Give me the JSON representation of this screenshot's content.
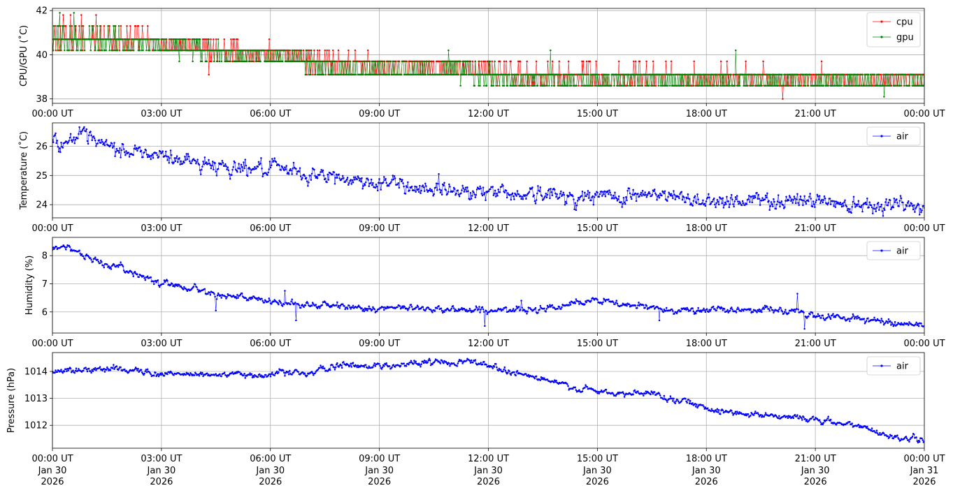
{
  "chart_data": [
    {
      "type": "line",
      "ylabel": "CPU/GPU (˚C)",
      "ylim": [
        37.8,
        42.1
      ],
      "yticks": [
        38,
        40,
        42
      ],
      "ytick_labels": [
        "38",
        "40",
        "42"
      ],
      "xlim_hours": [
        0,
        24
      ],
      "xtick_labels": [
        "00:00 UT",
        "03:00 UT",
        "06:00 UT",
        "09:00 UT",
        "12:00 UT",
        "15:00 UT",
        "18:00 UT",
        "21:00 UT",
        "00:00 UT"
      ],
      "grid": true,
      "legend": "top-right",
      "series": [
        {
          "name": "cpu",
          "color": "#ff0000",
          "levels": [
            38.0,
            38.6,
            39.1,
            39.7,
            40.2,
            40.7,
            41.3,
            41.8
          ],
          "trend": [
            [
              0,
              40.75
            ],
            [
              1.5,
              40.7
            ],
            [
              3,
              40.6
            ],
            [
              4.2,
              40.25
            ],
            [
              6.5,
              39.95
            ],
            [
              7.5,
              39.6
            ],
            [
              11.5,
              39.3
            ],
            [
              13,
              39.05
            ],
            [
              17,
              39.0
            ],
            [
              22,
              38.95
            ],
            [
              24,
              38.95
            ]
          ],
          "outliers": [
            [
              0.3,
              41.8
            ],
            [
              0.5,
              41.8
            ],
            [
              0.8,
              41.8
            ],
            [
              1.2,
              41.8
            ],
            [
              4.3,
              39.1
            ],
            [
              7.5,
              40.2
            ],
            [
              20.1,
              38.0
            ]
          ]
        },
        {
          "name": "gpu",
          "color": "#008000",
          "levels": [
            38.1,
            38.6,
            39.1,
            39.7,
            40.2,
            40.7,
            41.3,
            41.9
          ],
          "trend": [
            [
              0,
              40.75
            ],
            [
              1.5,
              40.65
            ],
            [
              3,
              40.45
            ],
            [
              4.5,
              40.1
            ],
            [
              6.5,
              39.8
            ],
            [
              8,
              39.35
            ],
            [
              11.5,
              39.2
            ],
            [
              12.5,
              38.9
            ],
            [
              17,
              38.9
            ],
            [
              22,
              38.85
            ],
            [
              24,
              38.85
            ]
          ],
          "outliers": [
            [
              0.2,
              41.9
            ],
            [
              0.6,
              41.9
            ],
            [
              10.9,
              40.2
            ],
            [
              13.7,
              40.2
            ],
            [
              18.8,
              40.2
            ],
            [
              22.9,
              38.1
            ]
          ]
        }
      ]
    },
    {
      "type": "line",
      "ylabel": "Temperature (˚C)",
      "ylim": [
        23.55,
        26.8
      ],
      "yticks": [
        24,
        25,
        26
      ],
      "ytick_labels": [
        "24",
        "25",
        "26"
      ],
      "xlim_hours": [
        0,
        24
      ],
      "xtick_labels": [
        "00:00 UT",
        "03:00 UT",
        "06:00 UT",
        "09:00 UT",
        "12:00 UT",
        "15:00 UT",
        "18:00 UT",
        "21:00 UT",
        "00:00 UT"
      ],
      "grid": true,
      "legend": "top-right",
      "series": [
        {
          "name": "air",
          "color": "#0000ff",
          "trend": [
            [
              0,
              26.3
            ],
            [
              0.3,
              26.1
            ],
            [
              0.6,
              26.35
            ],
            [
              1,
              26.2
            ],
            [
              1.5,
              25.95
            ],
            [
              3,
              25.65
            ],
            [
              4.5,
              25.35
            ],
            [
              6,
              25.2
            ],
            [
              7.5,
              24.95
            ],
            [
              9,
              24.75
            ],
            [
              10.5,
              24.55
            ],
            [
              12,
              24.45
            ],
            [
              13.5,
              24.35
            ],
            [
              14.5,
              24.25
            ],
            [
              15.5,
              24.3
            ],
            [
              16.2,
              24.35
            ],
            [
              18,
              24.15
            ],
            [
              21,
              24.15
            ],
            [
              22,
              24.05
            ],
            [
              23,
              24.05
            ],
            [
              24,
              23.85
            ]
          ],
          "noise": 0.12
        }
      ]
    },
    {
      "type": "line",
      "ylabel": "Humidity (%)",
      "ylim": [
        5.25,
        8.65
      ],
      "yticks": [
        6,
        7,
        8
      ],
      "ytick_labels": [
        "6",
        "7",
        "8"
      ],
      "xlim_hours": [
        0,
        24
      ],
      "xtick_labels": [
        "00:00 UT",
        "03:00 UT",
        "06:00 UT",
        "09:00 UT",
        "12:00 UT",
        "15:00 UT",
        "18:00 UT",
        "21:00 UT",
        "00:00 UT"
      ],
      "grid": true,
      "legend": "top-right",
      "series": [
        {
          "name": "air",
          "color": "#0000ff",
          "trend": [
            [
              0,
              8.3
            ],
            [
              0.4,
              8.35
            ],
            [
              1,
              7.9
            ],
            [
              2,
              7.5
            ],
            [
              3,
              7.05
            ],
            [
              4,
              6.8
            ],
            [
              5,
              6.55
            ],
            [
              6,
              6.35
            ],
            [
              7,
              6.25
            ],
            [
              8,
              6.2
            ],
            [
              9,
              6.1
            ],
            [
              10,
              6.15
            ],
            [
              11,
              6.1
            ],
            [
              12,
              6.05
            ],
            [
              13,
              6.05
            ],
            [
              14,
              6.25
            ],
            [
              15,
              6.4
            ],
            [
              16,
              6.2
            ],
            [
              17,
              6.1
            ],
            [
              18,
              6.05
            ],
            [
              19.5,
              6.1
            ],
            [
              20.5,
              6.0
            ],
            [
              21,
              5.85
            ],
            [
              22,
              5.8
            ],
            [
              22.5,
              5.7
            ],
            [
              23.5,
              5.58
            ],
            [
              24,
              5.55
            ]
          ],
          "noise": 0.05,
          "outliers": [
            [
              4.5,
              6.05
            ],
            [
              6.4,
              6.75
            ],
            [
              6.7,
              5.7
            ],
            [
              11.9,
              5.5
            ],
            [
              12.9,
              6.4
            ],
            [
              16.7,
              5.7
            ],
            [
              20.5,
              6.65
            ],
            [
              20.7,
              5.4
            ]
          ]
        }
      ]
    },
    {
      "type": "line",
      "ylabel": "Pressure (hPa)",
      "ylim": [
        1011.15,
        1014.7
      ],
      "yticks": [
        1012,
        1013,
        1014
      ],
      "ytick_labels": [
        "1012",
        "1013",
        "1014"
      ],
      "xlim_hours": [
        0,
        24
      ],
      "xtick_labels": [
        "00:00 UT",
        "03:00 UT",
        "06:00 UT",
        "09:00 UT",
        "12:00 UT",
        "15:00 UT",
        "18:00 UT",
        "21:00 UT",
        "00:00 UT"
      ],
      "xtick_sublabels": [
        "Jan 30\n2026",
        "Jan 30\n2026",
        "Jan 30\n2026",
        "Jan 30\n2026",
        "Jan 30\n2026",
        "Jan 30\n2026",
        "Jan 30\n2026",
        "Jan 30\n2026",
        "Jan 31\n2026"
      ],
      "grid": true,
      "legend": "top-right",
      "series": [
        {
          "name": "air",
          "color": "#0000ff",
          "trend": [
            [
              0,
              1014.0
            ],
            [
              1,
              1014.05
            ],
            [
              2,
              1014.1
            ],
            [
              3,
              1013.9
            ],
            [
              4,
              1013.9
            ],
            [
              5.5,
              1013.85
            ],
            [
              6.5,
              1014.0
            ],
            [
              7,
              1013.9
            ],
            [
              8,
              1014.25
            ],
            [
              9,
              1014.2
            ],
            [
              10,
              1014.3
            ],
            [
              11.5,
              1014.4
            ],
            [
              12.5,
              1014.05
            ],
            [
              13.5,
              1013.7
            ],
            [
              14.5,
              1013.35
            ],
            [
              15.5,
              1013.15
            ],
            [
              16.5,
              1013.2
            ],
            [
              17.5,
              1012.85
            ],
            [
              18.5,
              1012.5
            ],
            [
              19.5,
              1012.4
            ],
            [
              20.5,
              1012.3
            ],
            [
              21.5,
              1012.1
            ],
            [
              22.5,
              1011.9
            ],
            [
              23,
              1011.6
            ],
            [
              24,
              1011.45
            ]
          ],
          "noise": 0.05
        }
      ]
    }
  ]
}
